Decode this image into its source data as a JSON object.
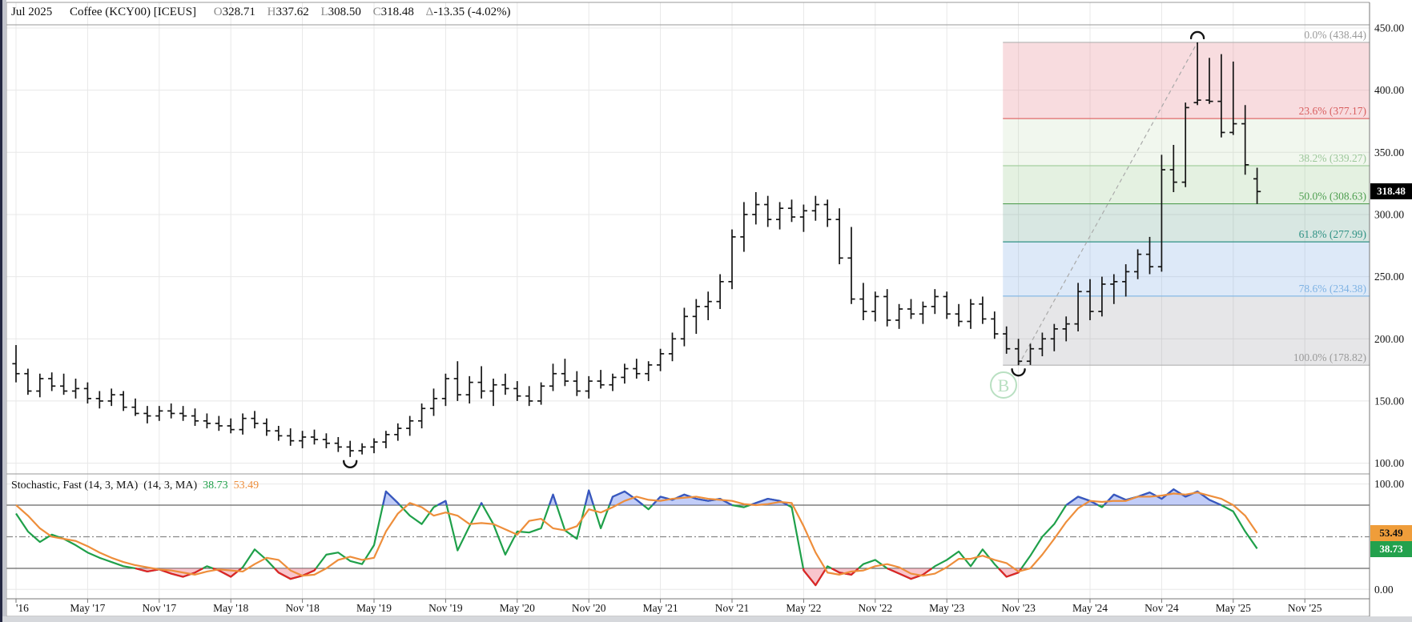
{
  "header": {
    "contract": "Jul 2025",
    "instrument": "Coffee (KCY00) [ICEUS]",
    "open_label": "O",
    "open": "328.71",
    "high_label": "H",
    "high": "337.62",
    "low_label": "L",
    "low": "308.50",
    "close_label": "C",
    "close": "318.48",
    "delta_label": "Δ",
    "delta": "-13.35 (-4.02%)"
  },
  "watermark": "B",
  "colors": {
    "bar": "#141414",
    "grid": "#e8e8e8",
    "border": "#999999",
    "stoch_k": "#1fa04a",
    "stoch_d": "#ee8e3b",
    "stoch_overbought_line": "#3a54c4",
    "stoch_overbought_fill": "rgba(120,145,240,0.45)",
    "stoch_oversold_line": "#e02326",
    "stoch_oversold_fill": "rgba(244,140,155,0.5)",
    "badge_last_bg": "#000000",
    "badge_last_text": "#ffffff",
    "badge_d_bg": "#ef9d3a",
    "badge_d_text": "#111111",
    "badge_k_bg": "#23a14d",
    "badge_k_text": "#ffffff",
    "watermark_color": "#b9e0c2",
    "trendline": "#aaaaaa"
  },
  "price_axis": {
    "tick_labels": [
      "450.00",
      "400.00",
      "350.00",
      "300.00",
      "250.00",
      "200.00",
      "150.00",
      "100.00"
    ],
    "tick_values": [
      450,
      400,
      350,
      300,
      250,
      200,
      150,
      100
    ],
    "last_price_badge": "318.48",
    "last_price": 318.48
  },
  "stoch_axis": {
    "top_label": "100.00",
    "bottom_label": "0.00",
    "d_badge": "53.49",
    "k_badge": "38.73",
    "d_value": 53.49,
    "k_value": 38.73
  },
  "stochastic_panel": {
    "title_1": "Stochastic, Fast (14, 3, MA)",
    "title_2": "(14, 3, MA)",
    "k_last": "38.73",
    "d_last": "53.49",
    "upper_threshold": 80,
    "lower_threshold": 20,
    "mid_line": 50
  },
  "fibonacci": {
    "zone_start_month": 82.7,
    "trend_from_month": 84,
    "trend_from_price": 178.82,
    "trend_to_month": 99,
    "trend_to_price": 438.44,
    "levels": [
      {
        "pct": "0.0%",
        "price": "438.44",
        "value": 438.44,
        "line": "#b2b2b2",
        "text": "#9a9a9a"
      },
      {
        "pct": "23.6%",
        "price": "377.17",
        "value": 377.17,
        "line": "#e06b6b",
        "text": "#d85f5f"
      },
      {
        "pct": "38.2%",
        "price": "339.27",
        "value": 339.27,
        "line": "#a5cf9f",
        "text": "#9cc79a"
      },
      {
        "pct": "50.0%",
        "price": "308.63",
        "value": 308.63,
        "line": "#55a055",
        "text": "#4e9e50"
      },
      {
        "pct": "61.8%",
        "price": "277.99",
        "value": 277.99,
        "line": "#2f9184",
        "text": "#2f9184"
      },
      {
        "pct": "78.6%",
        "price": "234.38",
        "value": 234.38,
        "line": "#85b9e6",
        "text": "#7fb3e4"
      },
      {
        "pct": "100.0%",
        "price": "178.82",
        "value": 178.82,
        "line": "#b2b2b2",
        "text": "#9a9a9a"
      }
    ],
    "band_fills": [
      "rgba(232,140,150,0.30)",
      "rgba(165,205,150,0.16)",
      "rgba(150,200,140,0.26)",
      "rgba(115,170,150,0.28)",
      "rgba(130,175,230,0.27)",
      "rgba(150,150,160,0.24)"
    ]
  },
  "chart_data": [
    {
      "type": "ohlc",
      "title": "Jul 2025 Coffee (KCY00) [ICEUS] monthly bars",
      "interval": "monthly",
      "start_month": "Nov 2016",
      "end_month": "Jul 2025",
      "ylim": [
        100,
        450
      ],
      "y_tick_step": 50,
      "x_tick_labels": [
        {
          "text": "'16",
          "month": 0
        },
        {
          "text": "May '17",
          "month": 6
        },
        {
          "text": "Nov '17",
          "month": 12
        },
        {
          "text": "May '18",
          "month": 18
        },
        {
          "text": "Nov '18",
          "month": 24
        },
        {
          "text": "May '19",
          "month": 30
        },
        {
          "text": "Nov '19",
          "month": 36
        },
        {
          "text": "May '20",
          "month": 42
        },
        {
          "text": "Nov '20",
          "month": 48
        },
        {
          "text": "May '21",
          "month": 54
        },
        {
          "text": "Nov '21",
          "month": 60
        },
        {
          "text": "May '22",
          "month": 66
        },
        {
          "text": "Nov '22",
          "month": 72
        },
        {
          "text": "May '23",
          "month": 78
        },
        {
          "text": "Nov '23",
          "month": 84
        },
        {
          "text": "May '24",
          "month": 90
        },
        {
          "text": "Nov '24",
          "month": 96
        },
        {
          "text": "May '25",
          "month": 102
        },
        {
          "text": "Nov '25",
          "month": 108
        }
      ],
      "markers": [
        {
          "type": "swing-low",
          "month": 28
        },
        {
          "type": "swing-low",
          "month": 84
        },
        {
          "type": "swing-high",
          "month": 99
        }
      ],
      "bars": [
        [
          180,
          195,
          165,
          172
        ],
        [
          172,
          176,
          155,
          158
        ],
        [
          158,
          172,
          153,
          168
        ],
        [
          168,
          173,
          158,
          162
        ],
        [
          162,
          172,
          155,
          158
        ],
        [
          158,
          168,
          152,
          160
        ],
        [
          160,
          165,
          148,
          152
        ],
        [
          152,
          158,
          144,
          150
        ],
        [
          150,
          160,
          146,
          155
        ],
        [
          155,
          158,
          142,
          145
        ],
        [
          145,
          152,
          138,
          140
        ],
        [
          140,
          146,
          132,
          138
        ],
        [
          138,
          146,
          134,
          142
        ],
        [
          142,
          148,
          136,
          140
        ],
        [
          140,
          146,
          134,
          138
        ],
        [
          138,
          144,
          130,
          134
        ],
        [
          134,
          140,
          128,
          132
        ],
        [
          132,
          138,
          126,
          130
        ],
        [
          130,
          136,
          124,
          127
        ],
        [
          127,
          140,
          123,
          136
        ],
        [
          136,
          142,
          128,
          132
        ],
        [
          132,
          136,
          122,
          126
        ],
        [
          126,
          130,
          118,
          122
        ],
        [
          122,
          128,
          114,
          118
        ],
        [
          118,
          126,
          112,
          121
        ],
        [
          121,
          127,
          115,
          119
        ],
        [
          119,
          124,
          112,
          116
        ],
        [
          116,
          121,
          109,
          113
        ],
        [
          113,
          118,
          105,
          110
        ],
        [
          110,
          116,
          107,
          113
        ],
        [
          113,
          120,
          108,
          117
        ],
        [
          117,
          126,
          112,
          123
        ],
        [
          123,
          132,
          118,
          128
        ],
        [
          128,
          138,
          122,
          134
        ],
        [
          134,
          148,
          128,
          144
        ],
        [
          144,
          160,
          138,
          152
        ],
        [
          152,
          172,
          146,
          168
        ],
        [
          168,
          182,
          150,
          155
        ],
        [
          155,
          170,
          148,
          165
        ],
        [
          165,
          178,
          152,
          158
        ],
        [
          158,
          168,
          146,
          163
        ],
        [
          163,
          172,
          155,
          160
        ],
        [
          160,
          166,
          150,
          154
        ],
        [
          154,
          162,
          146,
          150
        ],
        [
          150,
          165,
          147,
          162
        ],
        [
          162,
          180,
          158,
          172
        ],
        [
          172,
          184,
          162,
          166
        ],
        [
          166,
          174,
          154,
          158
        ],
        [
          158,
          170,
          152,
          166
        ],
        [
          166,
          175,
          160,
          163
        ],
        [
          163,
          172,
          158,
          169
        ],
        [
          169,
          180,
          164,
          176
        ],
        [
          176,
          184,
          168,
          172
        ],
        [
          172,
          182,
          166,
          179
        ],
        [
          179,
          192,
          174,
          188
        ],
        [
          188,
          205,
          182,
          200
        ],
        [
          200,
          225,
          194,
          218
        ],
        [
          218,
          232,
          204,
          226
        ],
        [
          226,
          238,
          215,
          230
        ],
        [
          230,
          252,
          224,
          246
        ],
        [
          246,
          288,
          240,
          282
        ],
        [
          282,
          310,
          270,
          300
        ],
        [
          300,
          318,
          292,
          308
        ],
        [
          308,
          315,
          290,
          296
        ],
        [
          296,
          310,
          288,
          305
        ],
        [
          305,
          312,
          294,
          298
        ],
        [
          298,
          308,
          286,
          303
        ],
        [
          303,
          315,
          295,
          308
        ],
        [
          308,
          312,
          290,
          296
        ],
        [
          296,
          305,
          260,
          265
        ],
        [
          265,
          290,
          228,
          232
        ],
        [
          232,
          245,
          215,
          222
        ],
        [
          222,
          238,
          214,
          234
        ],
        [
          234,
          240,
          210,
          215
        ],
        [
          215,
          228,
          208,
          224
        ],
        [
          224,
          232,
          216,
          220
        ],
        [
          220,
          230,
          212,
          226
        ],
        [
          226,
          240,
          220,
          234
        ],
        [
          234,
          238,
          216,
          220
        ],
        [
          220,
          228,
          210,
          214
        ],
        [
          214,
          232,
          208,
          228
        ],
        [
          228,
          234,
          212,
          216
        ],
        [
          216,
          222,
          200,
          204
        ],
        [
          204,
          210,
          188,
          192
        ],
        [
          192,
          200,
          178.82,
          182
        ],
        [
          182,
          196,
          179,
          192
        ],
        [
          192,
          205,
          186,
          200
        ],
        [
          200,
          212,
          190,
          208
        ],
        [
          208,
          218,
          198,
          212
        ],
        [
          212,
          245,
          206,
          238
        ],
        [
          238,
          248,
          215,
          222
        ],
        [
          222,
          250,
          218,
          244
        ],
        [
          244,
          252,
          228,
          246
        ],
        [
          246,
          260,
          234,
          254
        ],
        [
          254,
          272,
          248,
          268
        ],
        [
          268,
          282,
          252,
          258
        ],
        [
          258,
          348,
          254,
          336
        ],
        [
          336,
          356,
          318,
          326
        ],
        [
          326,
          390,
          322,
          386
        ],
        [
          390,
          438.44,
          388,
          392
        ],
        [
          392,
          426,
          389,
          391
        ],
        [
          391,
          429,
          362,
          366
        ],
        [
          366,
          423,
          364,
          373
        ],
        [
          373,
          388,
          332,
          340
        ],
        [
          328.71,
          337.62,
          308.5,
          318.48
        ]
      ]
    },
    {
      "type": "line",
      "title": "Stochastic, Fast (14, 3, MA) (14, 3, MA)",
      "ylim": [
        0,
        100
      ],
      "thresholds": {
        "upper": 80,
        "lower": 20,
        "mid": 50
      },
      "series": [
        {
          "name": "%K",
          "color": "#1fa04a",
          "last": 38.73,
          "values": [
            72,
            55,
            45,
            52,
            48,
            42,
            35,
            30,
            26,
            22,
            20,
            17,
            19,
            15,
            12,
            16,
            22,
            18,
            12,
            21,
            38,
            28,
            16,
            10,
            13,
            18,
            33,
            35,
            27,
            24,
            42,
            93,
            82,
            70,
            62,
            78,
            84,
            37,
            60,
            82,
            62,
            33,
            55,
            54,
            58,
            90,
            56,
            48,
            94,
            58,
            88,
            93,
            85,
            76,
            88,
            85,
            90,
            86,
            84,
            86,
            80,
            78,
            82,
            86,
            84,
            78,
            18,
            4,
            22,
            16,
            14,
            24,
            28,
            20,
            15,
            10,
            14,
            22,
            28,
            36,
            22,
            38,
            24,
            12,
            16,
            32,
            50,
            62,
            80,
            88,
            84,
            78,
            90,
            85,
            88,
            92,
            86,
            95,
            88,
            93,
            85,
            80,
            74,
            55,
            38.73
          ]
        },
        {
          "name": "%D",
          "color": "#ee8e3b",
          "last": 53.49,
          "values": [
            80,
            70,
            58,
            50,
            48,
            46,
            41,
            35,
            30,
            26,
            23,
            21,
            19,
            18,
            16,
            14,
            17,
            19,
            18,
            17,
            24,
            30,
            28,
            18,
            13,
            14,
            20,
            28,
            31,
            28,
            30,
            55,
            72,
            82,
            78,
            70,
            73,
            70,
            62,
            63,
            62,
            57,
            52,
            65,
            67,
            58,
            56,
            60,
            76,
            73,
            78,
            84,
            88,
            85,
            84,
            86,
            87,
            88,
            86,
            85,
            84,
            81,
            80,
            81,
            83,
            82,
            60,
            35,
            16,
            14,
            17,
            18,
            22,
            24,
            21,
            15,
            13,
            15,
            21,
            29,
            29,
            32,
            28,
            25,
            17,
            20,
            33,
            48,
            64,
            77,
            84,
            83,
            84,
            84,
            88,
            88,
            89,
            91,
            90,
            92,
            89,
            86,
            80,
            70,
            53.49
          ]
        }
      ]
    }
  ]
}
